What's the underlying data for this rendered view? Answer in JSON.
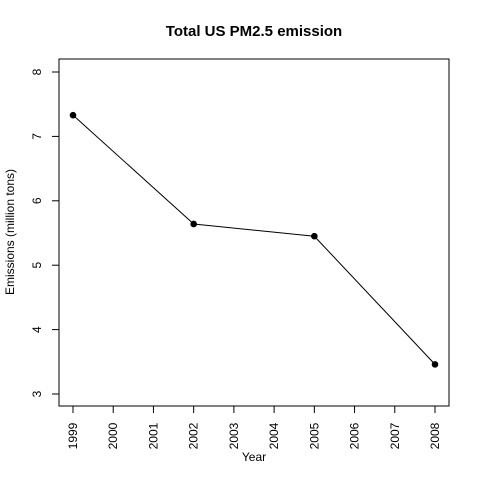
{
  "chart_data": {
    "type": "line",
    "title": "Total US PM2.5 emission",
    "xlabel": "Year",
    "ylabel": "Emissions (million tons)",
    "x": [
      1999,
      2002,
      2005,
      2008
    ],
    "series": [
      {
        "values": [
          7.33,
          5.64,
          5.45,
          3.46
        ]
      }
    ],
    "x_ticks": [
      "1999",
      "2000",
      "2001",
      "2002",
      "2003",
      "2004",
      "2005",
      "2006",
      "2007",
      "2008"
    ],
    "y_ticks": [
      "3",
      "4",
      "5",
      "6",
      "7",
      "8"
    ],
    "xlim": [
      1999,
      2008
    ],
    "ylim": [
      3,
      8
    ],
    "grid": false,
    "legend": "none",
    "colors": {
      "line": "#000000",
      "point": "#000000",
      "axes": "#000000",
      "background": "#ffffff"
    }
  }
}
